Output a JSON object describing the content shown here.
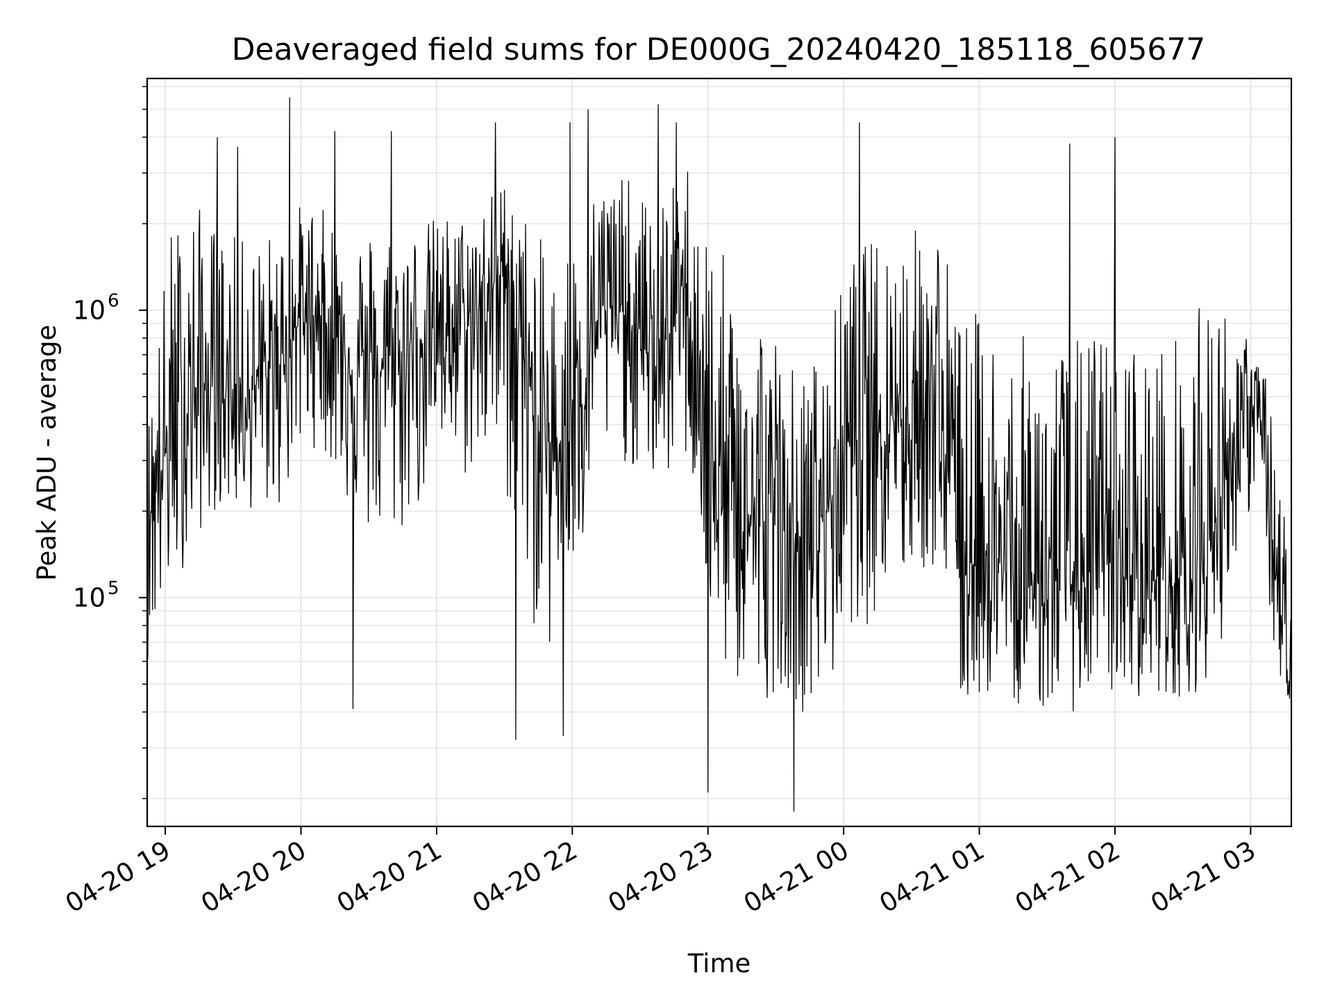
{
  "chart_data": {
    "type": "line",
    "title": "Deaveraged field sums for DE000G_20240420_185118_605677",
    "xlabel": "Time",
    "ylabel": "Peak ADU - average",
    "yscale": "log",
    "grid": true,
    "line_color": "#000000",
    "grid_color": "#e6e6e6",
    "xlim": [
      "2024-04-20 18:52",
      "2024-04-21 03:18"
    ],
    "ylim": [
      16000,
      6400000
    ],
    "x_ticks": [
      {
        "t": "2024-04-20 19:00",
        "label": "04-20 19"
      },
      {
        "t": "2024-04-20 20:00",
        "label": "04-20 20"
      },
      {
        "t": "2024-04-20 21:00",
        "label": "04-20 21"
      },
      {
        "t": "2024-04-20 22:00",
        "label": "04-20 22"
      },
      {
        "t": "2024-04-20 23:00",
        "label": "04-20 23"
      },
      {
        "t": "2024-04-21 00:00",
        "label": "04-21 00"
      },
      {
        "t": "2024-04-21 01:00",
        "label": "04-21 01"
      },
      {
        "t": "2024-04-21 02:00",
        "label": "04-21 02"
      },
      {
        "t": "2024-04-21 03:00",
        "label": "04-21 03"
      }
    ],
    "y_ticks": [
      {
        "value": 100000,
        "base": "10",
        "exp": "5"
      },
      {
        "value": 1000000,
        "base": "10",
        "exp": "6"
      }
    ],
    "x": [
      "2024-04-20 18:52",
      "2024-04-20 19:02",
      "2024-04-20 19:12",
      "2024-04-20 19:22",
      "2024-04-20 19:32",
      "2024-04-20 19:42",
      "2024-04-20 19:52",
      "2024-04-20 20:02",
      "2024-04-20 20:12",
      "2024-04-20 20:22",
      "2024-04-20 20:32",
      "2024-04-20 20:42",
      "2024-04-20 20:52",
      "2024-04-20 21:02",
      "2024-04-20 21:12",
      "2024-04-20 21:22",
      "2024-04-20 21:32",
      "2024-04-20 21:42",
      "2024-04-20 21:52",
      "2024-04-20 22:02",
      "2024-04-20 22:12",
      "2024-04-20 22:22",
      "2024-04-20 22:32",
      "2024-04-20 22:42",
      "2024-04-20 22:52",
      "2024-04-20 23:02",
      "2024-04-20 23:12",
      "2024-04-20 23:22",
      "2024-04-20 23:32",
      "2024-04-20 23:42",
      "2024-04-20 23:52",
      "2024-04-21 00:02",
      "2024-04-21 00:12",
      "2024-04-21 00:22",
      "2024-04-21 00:32",
      "2024-04-21 00:42",
      "2024-04-21 00:52",
      "2024-04-21 01:02",
      "2024-04-21 01:12",
      "2024-04-21 01:22",
      "2024-04-21 01:32",
      "2024-04-21 01:42",
      "2024-04-21 01:52",
      "2024-04-21 02:02",
      "2024-04-21 02:12",
      "2024-04-21 02:22",
      "2024-04-21 02:32",
      "2024-04-21 02:42",
      "2024-04-21 02:52",
      "2024-04-21 03:02",
      "2024-04-21 03:12",
      "2024-04-21 03:18"
    ],
    "y": [
      200000,
      350000,
      500000,
      550000,
      500000,
      550000,
      700000,
      1000000,
      900000,
      700000,
      600000,
      650000,
      800000,
      900000,
      850000,
      1100000,
      1500000,
      450000,
      300000,
      550000,
      1000000,
      1000000,
      700000,
      800000,
      1100000,
      250000,
      200000,
      180000,
      200000,
      150000,
      200000,
      350000,
      450000,
      450000,
      400000,
      500000,
      120000,
      150000,
      120000,
      110000,
      120000,
      110000,
      130000,
      130000,
      110000,
      120000,
      110000,
      150000,
      350000,
      550000,
      100000,
      45000
    ],
    "envelope_high": [
      400000,
      2000000,
      2500000,
      2000000,
      1800000,
      1800000,
      2000000,
      2500000,
      2200000,
      2000000,
      2000000,
      2000000,
      2000000,
      2200000,
      2200000,
      2500000,
      3000000,
      2000000,
      1500000,
      2000000,
      3000000,
      3000000,
      2500000,
      2500000,
      3500000,
      2000000,
      1200000,
      1200000,
      800000,
      600000,
      800000,
      1500000,
      1800000,
      2000000,
      2000000,
      2200000,
      1000000,
      1000000,
      900000,
      800000,
      800000,
      800000,
      900000,
      900000,
      800000,
      800000,
      900000,
      1200000,
      1000000,
      700000,
      500000,
      100000
    ],
    "envelope_low": [
      60000,
      100000,
      150000,
      200000,
      200000,
      200000,
      200000,
      350000,
      300000,
      200000,
      150000,
      150000,
      200000,
      300000,
      250000,
      300000,
      200000,
      80000,
      60000,
      100000,
      300000,
      300000,
      250000,
      250000,
      300000,
      60000,
      50000,
      40000,
      50000,
      40000,
      40000,
      80000,
      80000,
      100000,
      120000,
      120000,
      40000,
      45000,
      45000,
      40000,
      40000,
      40000,
      45000,
      45000,
      45000,
      45000,
      45000,
      50000,
      100000,
      250000,
      50000,
      35000
    ],
    "spikes": [
      {
        "t": "2024-04-20 19:23",
        "value": 4000000
      },
      {
        "t": "2024-04-20 19:32",
        "value": 3700000
      },
      {
        "t": "2024-04-20 19:55",
        "value": 5500000
      },
      {
        "t": "2024-04-20 20:15",
        "value": 4200000
      },
      {
        "t": "2024-04-20 20:40",
        "value": 4200000
      },
      {
        "t": "2024-04-20 21:26",
        "value": 4500000
      },
      {
        "t": "2024-04-20 21:59",
        "value": 4500000
      },
      {
        "t": "2024-04-20 22:07",
        "value": 5000000
      },
      {
        "t": "2024-04-20 22:38",
        "value": 5200000
      },
      {
        "t": "2024-04-20 22:46",
        "value": 4500000
      },
      {
        "t": "2024-04-21 00:07",
        "value": 4500000
      },
      {
        "t": "2024-04-21 01:40",
        "value": 3800000
      },
      {
        "t": "2024-04-21 02:00",
        "value": 4000000
      },
      {
        "t": "2024-04-20 23:38",
        "value": 18000
      },
      {
        "t": "2024-04-20 23:00",
        "value": 21000
      },
      {
        "t": "2024-04-20 21:56",
        "value": 33000
      },
      {
        "t": "2024-04-20 21:35",
        "value": 32000
      },
      {
        "t": "2024-04-20 20:23",
        "value": 41000
      }
    ]
  }
}
